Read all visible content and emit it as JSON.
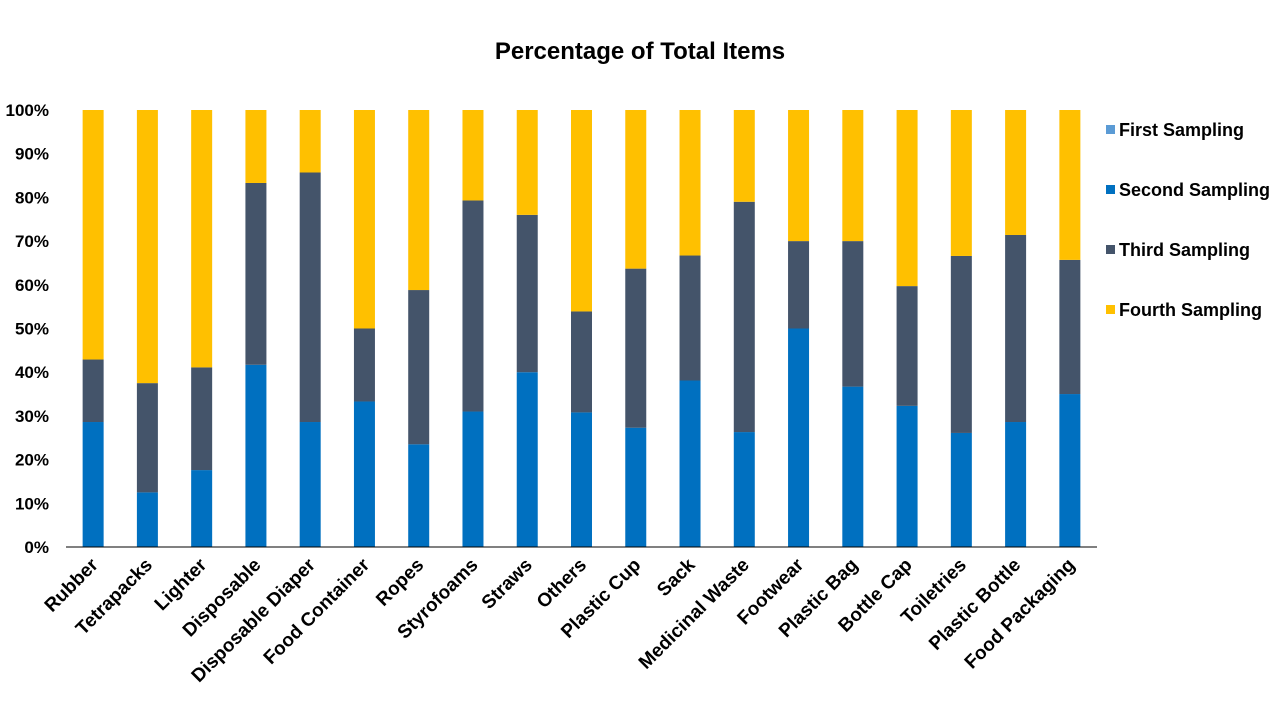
{
  "chart_data": {
    "type": "bar",
    "stacked": true,
    "normalized": true,
    "title": "Percentage of Total Items",
    "xlabel": "",
    "ylabel": "",
    "ylim": [
      0,
      100
    ],
    "yticks": [
      "0%",
      "10%",
      "20%",
      "30%",
      "40%",
      "50%",
      "60%",
      "70%",
      "80%",
      "90%",
      "100%"
    ],
    "grid": false,
    "legend_position": "right",
    "categories": [
      "Rubber",
      "Tetrapacks",
      "Lighter",
      "Disposable",
      "Disposable Diaper",
      "Food Container",
      "Ropes",
      "Styrofoams",
      "Straws",
      "Others",
      "Plastic Cup",
      "Sack",
      "Medicinal Waste",
      "Footwear",
      "Plastic Bag",
      "Bottle Cap",
      "Toiletries",
      "Plastic Bottle",
      "Food Packaging"
    ],
    "series": [
      {
        "name": "First Sampling",
        "color": "#5b9bd5",
        "values": [
          0,
          0,
          0,
          0,
          0,
          0,
          0,
          0,
          0,
          0,
          0,
          0,
          0,
          0,
          0,
          0,
          0,
          0,
          0
        ]
      },
      {
        "name": "Second Sampling",
        "color": "#0070c0",
        "values": [
          28.6,
          12.5,
          17.6,
          41.7,
          28.6,
          33.3,
          23.5,
          31.0,
          40.0,
          30.8,
          27.3,
          38.1,
          26.3,
          50.0,
          36.7,
          32.3,
          26.1,
          28.6,
          35.0
        ]
      },
      {
        "name": "Third Sampling",
        "color": "#44546a",
        "values": [
          14.3,
          25.0,
          23.5,
          41.6,
          57.1,
          16.7,
          35.3,
          48.3,
          36.0,
          23.1,
          36.4,
          28.6,
          52.7,
          20.0,
          33.3,
          27.4,
          40.5,
          42.8,
          30.7
        ]
      },
      {
        "name": "Fourth Sampling",
        "color": "#ffc000",
        "values": [
          57.1,
          62.5,
          58.9,
          16.7,
          14.3,
          50.0,
          41.2,
          20.7,
          24.0,
          46.1,
          36.3,
          33.3,
          21.0,
          30.0,
          30.0,
          40.3,
          33.4,
          28.6,
          34.3
        ]
      }
    ]
  }
}
